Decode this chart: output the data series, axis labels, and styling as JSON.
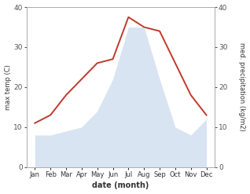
{
  "months": [
    "Jan",
    "Feb",
    "Mar",
    "Apr",
    "May",
    "Jun",
    "Jul",
    "Aug",
    "Sep",
    "Oct",
    "Nov",
    "Dec"
  ],
  "month_positions": [
    1,
    2,
    3,
    4,
    5,
    6,
    7,
    8,
    9,
    10,
    11,
    12
  ],
  "temperature": [
    11,
    13,
    18,
    22,
    26,
    27,
    37.5,
    35,
    34,
    26,
    18,
    13
  ],
  "precipitation": [
    8,
    8,
    9,
    10,
    14,
    22,
    35,
    35,
    22,
    10,
    8,
    12
  ],
  "temp_color": "#c0392b",
  "precip_color": "#b8cfe8",
  "ylim": [
    0,
    40
  ],
  "xlabel": "date (month)",
  "ylabel_left": "max temp (C)",
  "ylabel_right": "med. precipitation (kg/m2)",
  "bg_color": "#ffffff",
  "spine_color": "#aaaaaa",
  "tick_color": "#555555",
  "label_color": "#333333"
}
